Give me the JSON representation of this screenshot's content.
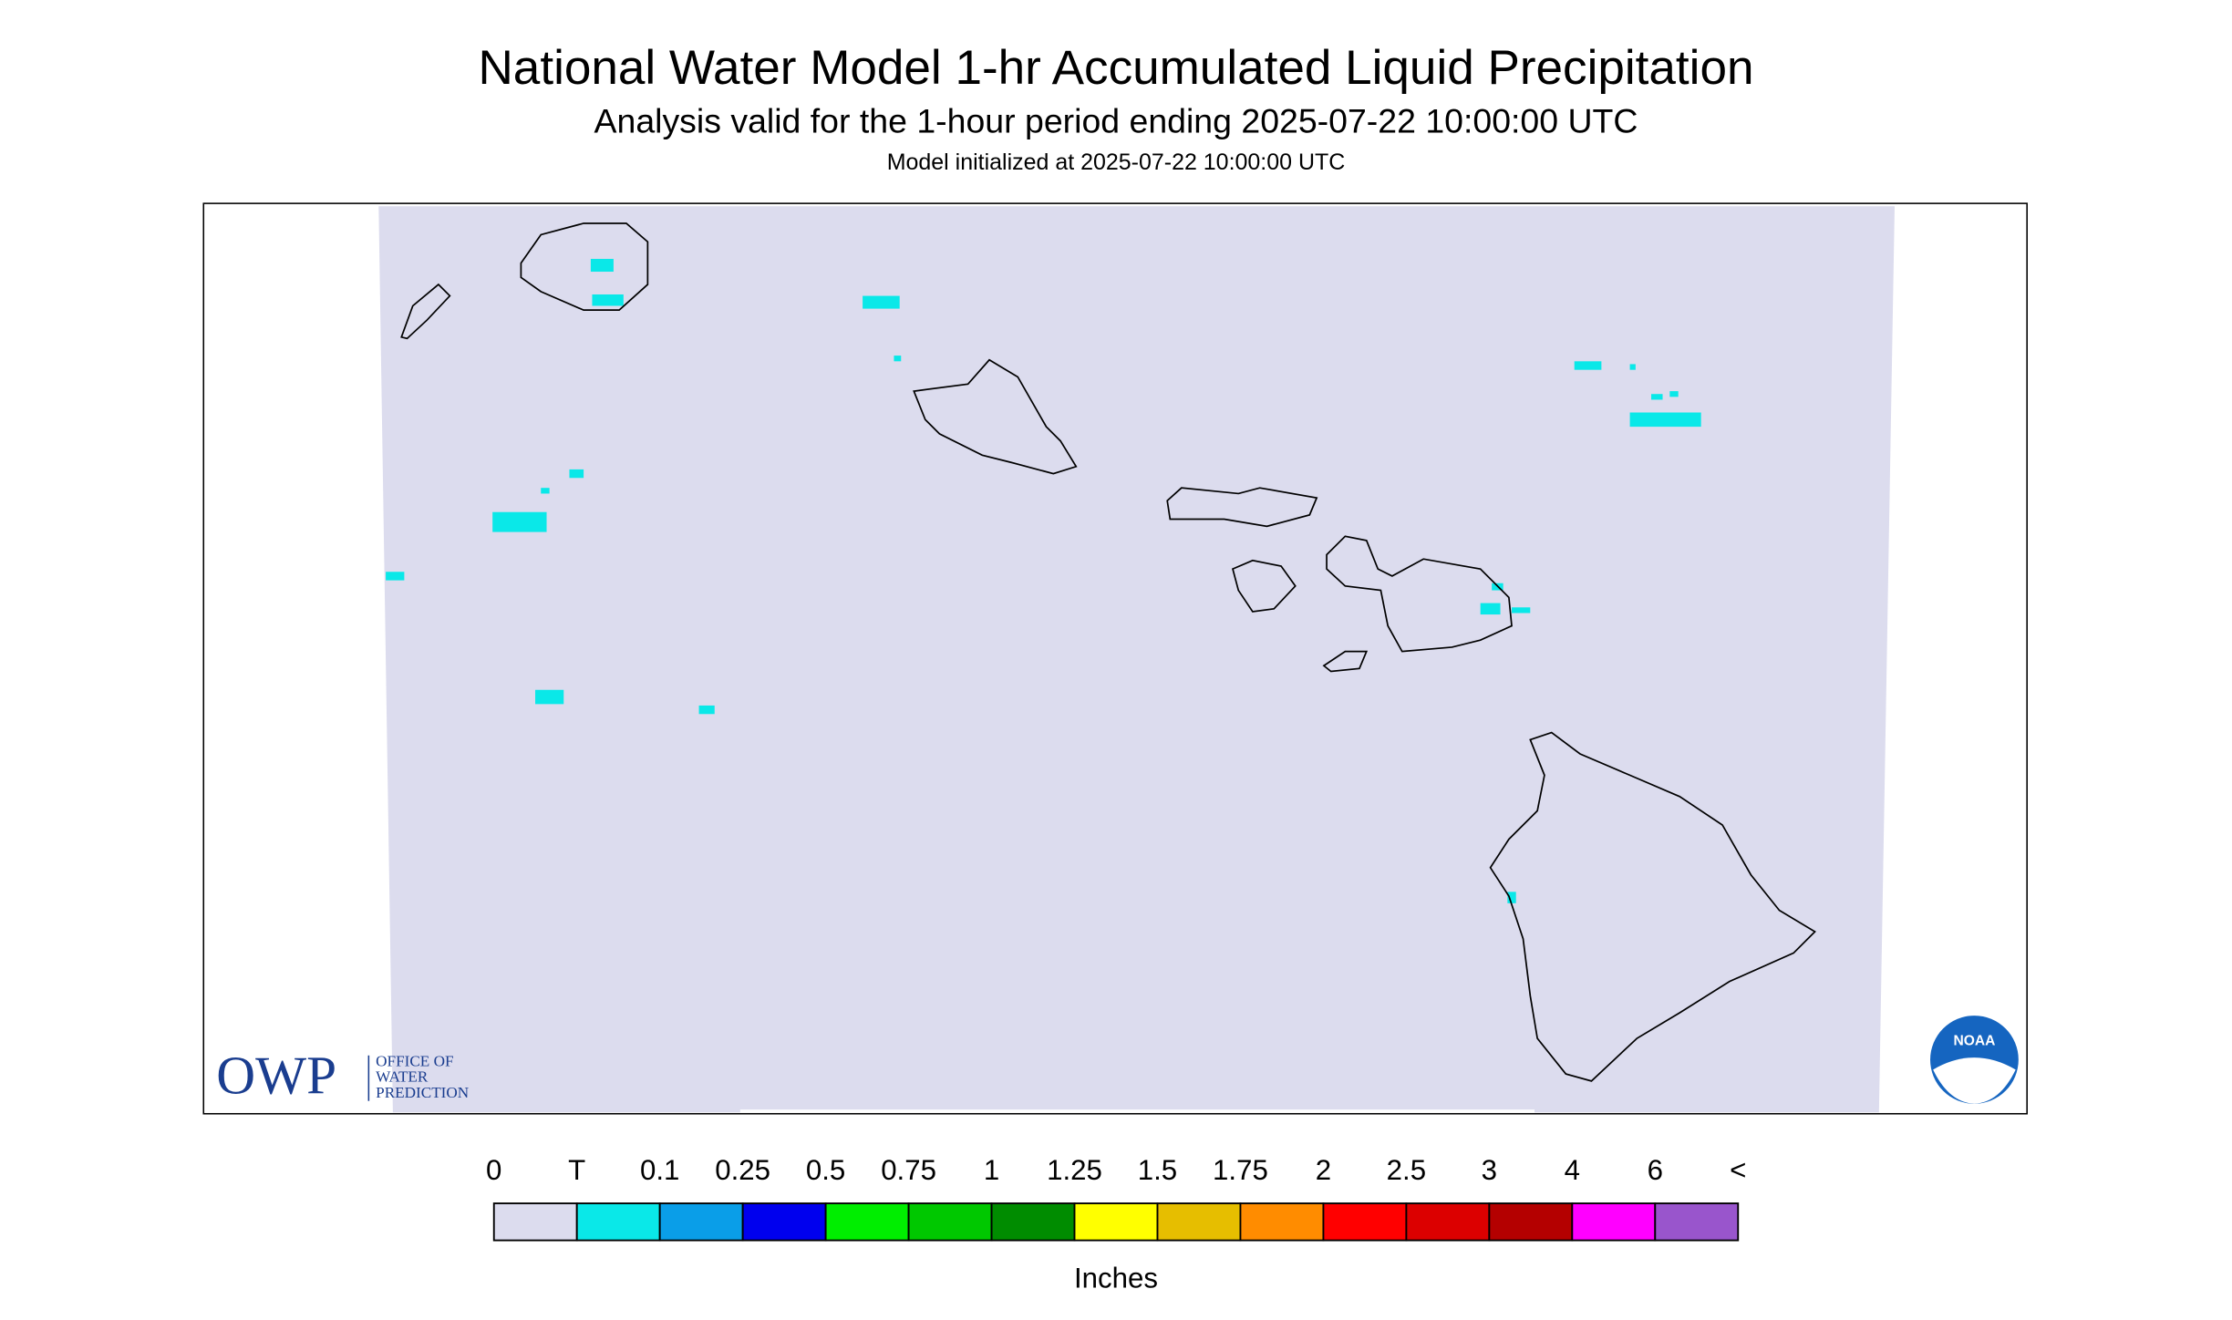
{
  "header": {
    "title": "National Water Model 1-hr Accumulated Liquid Precipitation",
    "subtitle": "Analysis valid for the 1-hour period ending 2025-07-22 10:00:00 UTC",
    "initialized": "Model initialized at 2025-07-22 10:00:00 UTC"
  },
  "legend": {
    "labels": [
      "0",
      "T",
      "0.1",
      "0.25",
      "0.5",
      "0.75",
      "1",
      "1.25",
      "1.5",
      "1.75",
      "2",
      "2.5",
      "3",
      "4",
      "6",
      "<"
    ],
    "colors": [
      "#dcdcee",
      "#0ae8e8",
      "#0a9ee8",
      "#0000ee",
      "#00ee00",
      "#00c800",
      "#008c00",
      "#ffff00",
      "#e6be00",
      "#ff8c00",
      "#ff0000",
      "#dc0000",
      "#b40000",
      "#ff00ff",
      "#9955cc"
    ],
    "unit": "Inches"
  },
  "logos": {
    "owp": "OWP",
    "owp_lines": [
      "OFFICE OF",
      "WATER",
      "PREDICTION"
    ],
    "noaa": "NOAA"
  }
}
